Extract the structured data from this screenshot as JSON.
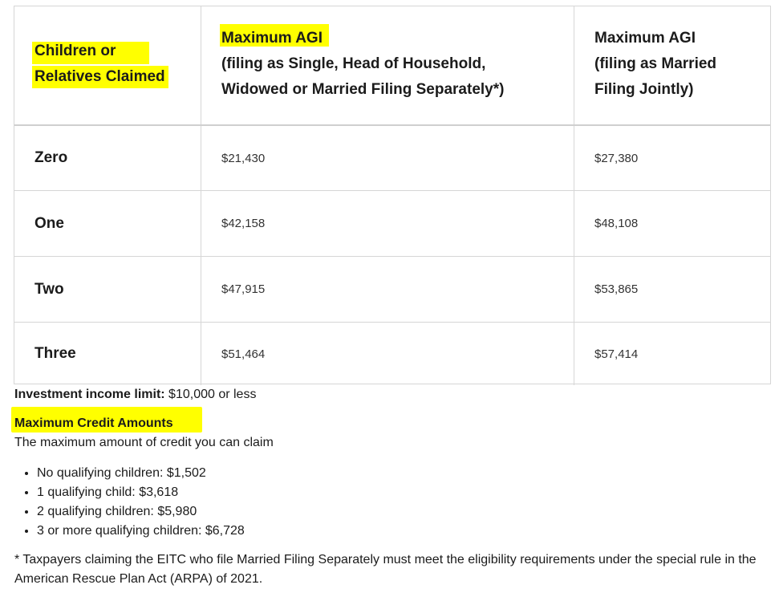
{
  "table": {
    "headers": [
      [
        "Children or",
        "Relatives Claimed"
      ],
      [
        "Maximum AGI",
        "(filing as Single, Head of Household,",
        "Widowed or Married Filing Separately*)"
      ],
      [
        "Maximum AGI",
        "(filing as Married",
        "Filing Jointly)"
      ]
    ],
    "rows": [
      {
        "label": "Zero",
        "single": "$21,430",
        "joint": "$27,380"
      },
      {
        "label": "One",
        "single": "$42,158",
        "joint": "$48,108"
      },
      {
        "label": "Two",
        "single": "$47,915",
        "joint": "$53,865"
      },
      {
        "label": "Three",
        "single": "$51,464",
        "joint": "$57,414"
      }
    ]
  },
  "investment": {
    "label": "Investment income limit:",
    "value": "$10,000 or less"
  },
  "credit": {
    "heading": "Maximum Credit Amounts",
    "subheading": "The maximum amount of credit you can claim",
    "items": [
      "No qualifying children: $1,502",
      "1 qualifying child: $3,618",
      "2 qualifying children: $5,980",
      "3 or more qualifying children: $6,728"
    ]
  },
  "footnote": "* Taxpayers claiming the EITC who file Married Filing Separately must meet the eligibility requirements under the special rule in the American Rescue Plan Act (ARPA) of 2021.",
  "colors": {
    "highlight": "#ffff00",
    "border": "#d6d6d6",
    "text": "#1b1b1b"
  }
}
